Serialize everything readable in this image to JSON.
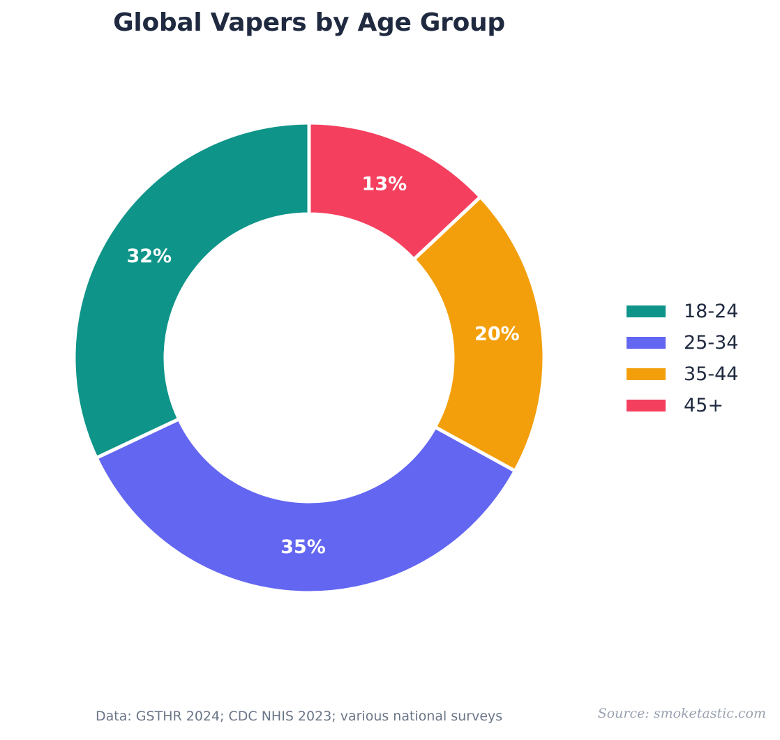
{
  "chart_data": {
    "type": "pie",
    "title": "Global Vapers by Age Group",
    "categories": [
      "18-24",
      "25-34",
      "35-44",
      "45+"
    ],
    "values": [
      32,
      35,
      20,
      13
    ],
    "data_labels": [
      "32%",
      "35%",
      "20%",
      "13%"
    ],
    "colors": [
      "#0e9488",
      "#6366f1",
      "#f39f0b",
      "#f43f5e"
    ],
    "style": "donut",
    "legend_position": "right",
    "grid": false
  },
  "footer": {
    "note": "Data: GSTHR 2024; CDC NHIS 2023; various national surveys",
    "source": "Source: smoketastic.com"
  }
}
